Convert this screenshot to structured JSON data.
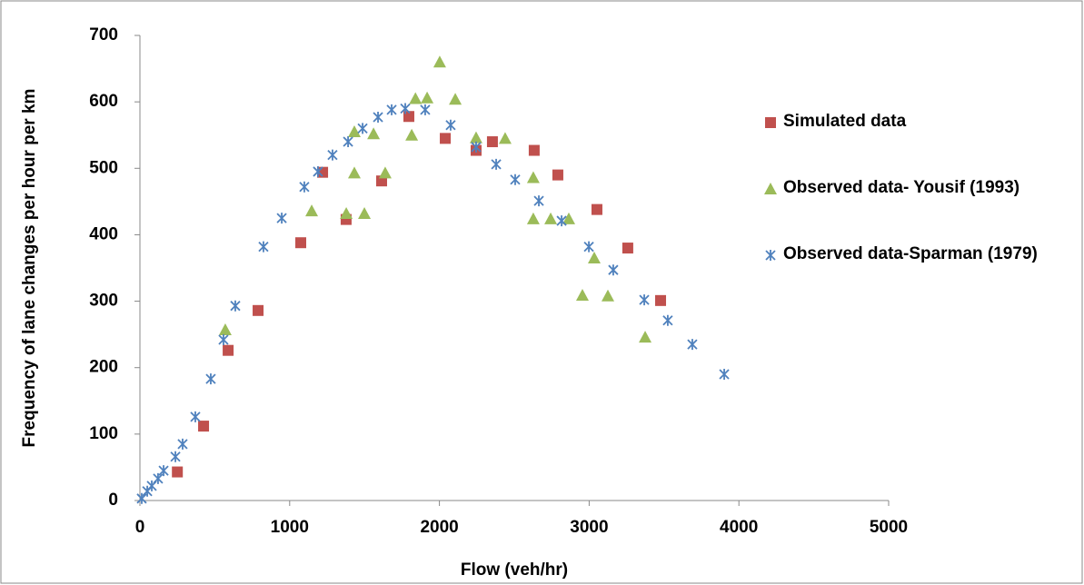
{
  "chart_data": {
    "type": "scatter",
    "x_label": "Flow (veh/hr)",
    "y_label": "Frequency of lane changes per hour per km",
    "xlim": [
      0,
      5000
    ],
    "xticks": [
      0,
      1000,
      2000,
      3000,
      4000,
      5000
    ],
    "ylim": [
      0,
      700
    ],
    "yticks": [
      0,
      100,
      200,
      300,
      400,
      500,
      600,
      700
    ],
    "grid": false,
    "legend": "right",
    "series": [
      {
        "name": "Simulated data",
        "color": "#c0504d",
        "marker": "square",
        "x": [
          250,
          425,
          589,
          789,
          1074,
          1220,
          1377,
          1614,
          1796,
          2039,
          2245,
          2354,
          2633,
          2791,
          3052,
          3258,
          3477
        ],
        "values": [
          43,
          112,
          226,
          286,
          388,
          494,
          423,
          481,
          578,
          545,
          527,
          540,
          527,
          490,
          438,
          380,
          301
        ]
      },
      {
        "name": "Observed data- Yousif (1993)",
        "color": "#9bbb59",
        "marker": "triangle",
        "x": [
          570,
          1147,
          1378,
          1432,
          1432,
          1499,
          1560,
          1638,
          1815,
          1840,
          1918,
          2002,
          2106,
          2245,
          2439,
          2627,
          2627,
          2743,
          2864,
          3034,
          2955,
          3125,
          3374
        ],
        "values": [
          257,
          436,
          432,
          493,
          555,
          432,
          552,
          493,
          550,
          605,
          606,
          660,
          604,
          546,
          545,
          486,
          424,
          424,
          424,
          365,
          309,
          308,
          246
        ]
      },
      {
        "name": "Observed data-Sparman (1979)",
        "color": "#4f81bd",
        "marker": "asterisk",
        "x": [
          12,
          49,
          79,
          121,
          158,
          237,
          285,
          370,
          473,
          558,
          637,
          825,
          947,
          1098,
          1189,
          1286,
          1390,
          1487,
          1590,
          1681,
          1772,
          1905,
          2075,
          2245,
          2379,
          2506,
          2664,
          2816,
          2998,
          3161,
          3368,
          3525,
          3689,
          3902
        ],
        "values": [
          3,
          14,
          22,
          33,
          45,
          66,
          85,
          126,
          183,
          242,
          293,
          382,
          425,
          472,
          495,
          520,
          540,
          560,
          577,
          588,
          590,
          588,
          565,
          532,
          506,
          483,
          451,
          421,
          382,
          347,
          302,
          271,
          235,
          190
        ]
      }
    ]
  }
}
